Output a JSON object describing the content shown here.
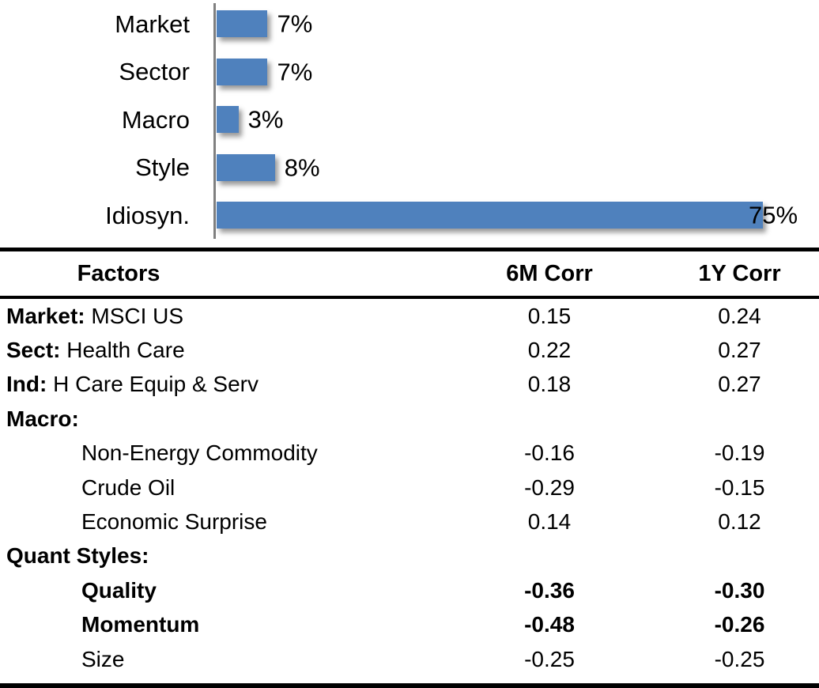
{
  "chart_data": [
    {
      "type": "bar",
      "orientation": "horizontal",
      "title": "",
      "categories": [
        "Market",
        "Sector",
        "Macro",
        "Style",
        "Idiosyn."
      ],
      "values": [
        7,
        7,
        3,
        8,
        75
      ],
      "data_labels": [
        "7%",
        "7%",
        "3%",
        "8%",
        "75%"
      ],
      "unit": "percent",
      "xlim": [
        0,
        75
      ],
      "grid": false,
      "legend": false,
      "bar_color": "#4F81BD",
      "axis_line_color": "#808080",
      "label_color": "#000000"
    },
    {
      "type": "table",
      "columns": [
        "Factors",
        "6M Corr",
        "1Y Corr"
      ],
      "rows": [
        {
          "prefix": "Market:",
          "label": "MSCI US",
          "indent": false,
          "bold": false,
          "corr_6m": "0.15",
          "corr_1y": "0.24"
        },
        {
          "prefix": "Sect:",
          "label": "Health Care",
          "indent": false,
          "bold": false,
          "corr_6m": "0.22",
          "corr_1y": "0.27"
        },
        {
          "prefix": "Ind:",
          "label": "H Care Equip & Serv",
          "indent": false,
          "bold": false,
          "corr_6m": "0.18",
          "corr_1y": "0.27"
        },
        {
          "prefix": "Macro:",
          "label": "",
          "indent": false,
          "bold": false,
          "corr_6m": "",
          "corr_1y": ""
        },
        {
          "prefix": "",
          "label": "Non-Energy Commodity",
          "indent": true,
          "bold": false,
          "corr_6m": "-0.16",
          "corr_1y": "-0.19"
        },
        {
          "prefix": "",
          "label": "Crude Oil",
          "indent": true,
          "bold": false,
          "corr_6m": "-0.29",
          "corr_1y": "-0.15"
        },
        {
          "prefix": "",
          "label": "Economic Surprise",
          "indent": true,
          "bold": false,
          "corr_6m": "0.14",
          "corr_1y": "0.12"
        },
        {
          "prefix": "Quant Styles:",
          "label": "",
          "indent": false,
          "bold": false,
          "corr_6m": "",
          "corr_1y": ""
        },
        {
          "prefix": "",
          "label": "Quality",
          "indent": true,
          "bold": true,
          "corr_6m": "-0.36",
          "corr_1y": "-0.30"
        },
        {
          "prefix": "",
          "label": "Momentum",
          "indent": true,
          "bold": true,
          "corr_6m": "-0.48",
          "corr_1y": "-0.26"
        },
        {
          "prefix": "",
          "label": "Size",
          "indent": true,
          "bold": false,
          "corr_6m": "-0.25",
          "corr_1y": "-0.25"
        }
      ]
    }
  ]
}
